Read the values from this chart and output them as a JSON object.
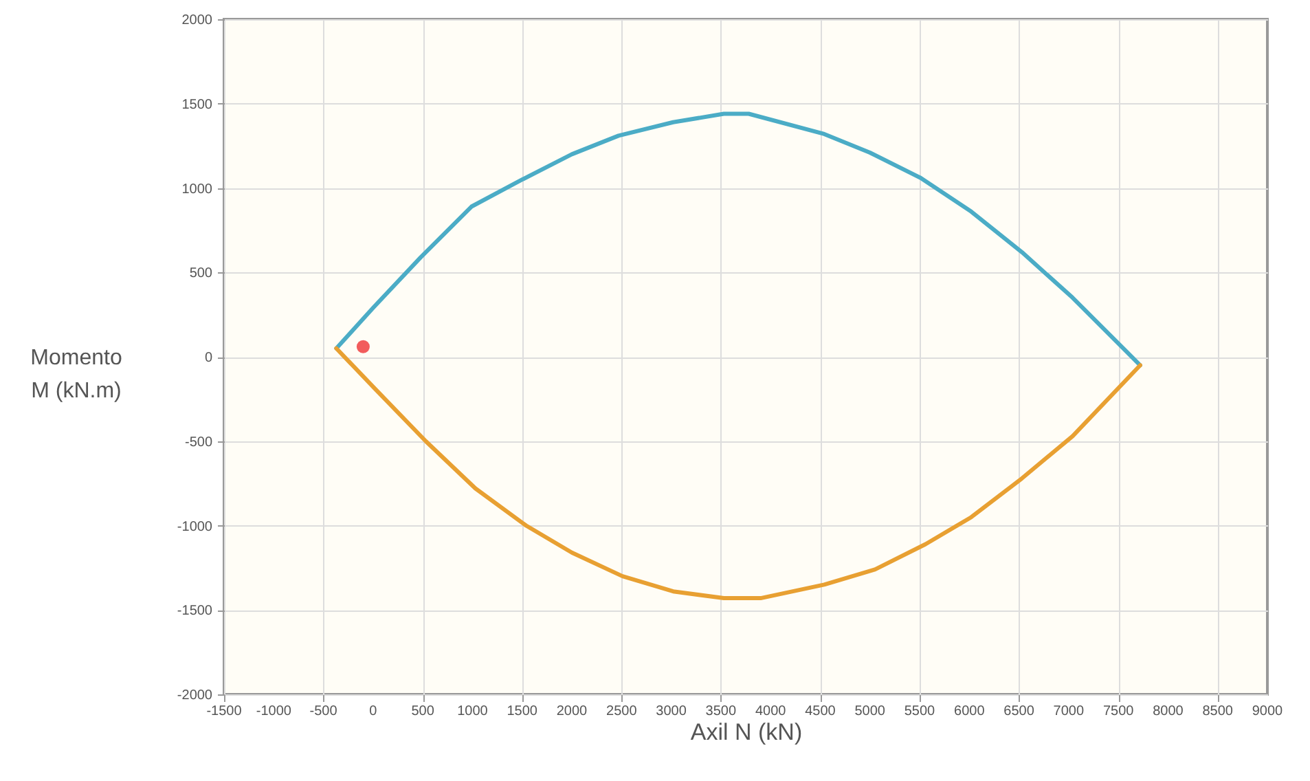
{
  "chart_data": {
    "type": "line",
    "xlabel": "Axil N (kN)",
    "ylabel": "Momento M (kN.m)",
    "xlim": [
      -1500,
      9000
    ],
    "xticks": [
      -1500,
      -1000,
      -500,
      0,
      500,
      1000,
      1500,
      2000,
      2500,
      3000,
      3500,
      4000,
      4500,
      5000,
      5500,
      6000,
      6500,
      7000,
      7500,
      8000,
      8500,
      9000
    ],
    "ylim": [
      -2000,
      2000
    ],
    "yticks": [
      -2000,
      -1500,
      -1000,
      -500,
      0,
      500,
      1000,
      1500,
      2000
    ],
    "grid": true,
    "series": [
      {
        "type": "line",
        "color": "#4bacc6",
        "x": [
          -370,
          0,
          480,
          990,
          1500,
          2000,
          2470,
          3020,
          3530,
          3780,
          4540,
          5000,
          5510,
          6020,
          6530,
          7040,
          7720
        ],
        "values": [
          50,
          290,
          590,
          890,
          1050,
          1200,
          1310,
          1390,
          1440,
          1440,
          1320,
          1210,
          1060,
          860,
          620,
          350,
          -50
        ]
      },
      {
        "type": "line",
        "color": "#e8a032",
        "x": [
          -370,
          20,
          530,
          1030,
          1540,
          2000,
          2510,
          3020,
          3530,
          3900,
          4540,
          5050,
          5560,
          6020,
          6530,
          7040,
          7720
        ],
        "values": [
          50,
          -190,
          -500,
          -780,
          -1000,
          -1160,
          -1300,
          -1390,
          -1430,
          -1430,
          -1350,
          -1260,
          -1110,
          -950,
          -720,
          -470,
          -50
        ]
      },
      {
        "type": "scatter",
        "color": "#f25c5c",
        "marker": "circle",
        "x": [
          -100
        ],
        "values": [
          60
        ]
      }
    ]
  }
}
